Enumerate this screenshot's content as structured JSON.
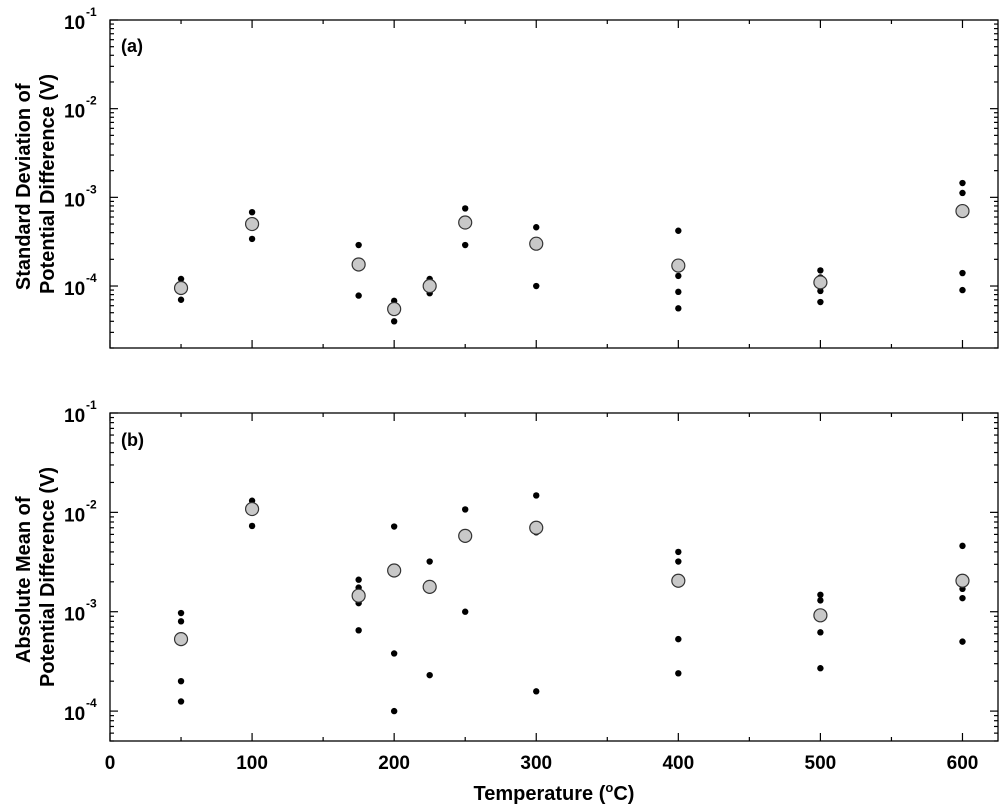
{
  "chart_data": [
    {
      "type": "scatter",
      "panel_label": "(a)",
      "ylabel_lines": [
        "Standard Deviation of",
        "Potential Difference (V)"
      ],
      "xlim": [
        0,
        625
      ],
      "ylim": [
        2e-05,
        0.1
      ],
      "yscale": "log",
      "x_ticks": [
        0,
        100,
        200,
        300,
        400,
        500,
        600
      ],
      "y_ticks": [
        {
          "value": 0.0001,
          "base": "10",
          "exp": "-4"
        },
        {
          "value": 0.001,
          "base": "10",
          "exp": "-3"
        },
        {
          "value": 0.01,
          "base": "10",
          "exp": "-2"
        },
        {
          "value": 0.1,
          "base": "10",
          "exp": "-1"
        }
      ],
      "grid": false,
      "series": [
        {
          "marker": "small-black-dot",
          "color": "#000000",
          "points": [
            [
              50,
              0.00012
            ],
            [
              50,
              7e-05
            ],
            [
              100,
              0.00068
            ],
            [
              100,
              0.00034
            ],
            [
              175,
              0.00029
            ],
            [
              175,
              0.00016
            ],
            [
              175,
              7.8e-05
            ],
            [
              200,
              6.8e-05
            ],
            [
              200,
              4e-05
            ],
            [
              225,
              0.00012
            ],
            [
              225,
              8.3e-05
            ],
            [
              250,
              0.00075
            ],
            [
              250,
              0.00029
            ],
            [
              300,
              0.00046
            ],
            [
              300,
              0.0001
            ],
            [
              400,
              0.00042
            ],
            [
              400,
              0.00013
            ],
            [
              400,
              8.6e-05
            ],
            [
              400,
              5.6e-05
            ],
            [
              500,
              0.00015
            ],
            [
              500,
              0.000125
            ],
            [
              500,
              8.8e-05
            ],
            [
              500,
              6.6e-05
            ],
            [
              600,
              0.00145
            ],
            [
              600,
              0.00112
            ],
            [
              600,
              0.00014
            ],
            [
              600,
              9e-05
            ]
          ]
        },
        {
          "marker": "large-gray-circle",
          "color": "#c8c8c8",
          "points": [
            [
              50,
              9.5e-05
            ],
            [
              100,
              0.0005
            ],
            [
              175,
              0.000175
            ],
            [
              200,
              5.5e-05
            ],
            [
              225,
              0.0001
            ],
            [
              250,
              0.00052
            ],
            [
              300,
              0.0003
            ],
            [
              400,
              0.00017
            ],
            [
              500,
              0.00011
            ],
            [
              600,
              0.0007
            ]
          ]
        }
      ]
    },
    {
      "type": "scatter",
      "panel_label": "(b)",
      "ylabel_lines": [
        "Absolute Mean of",
        "Potential Difference (V)"
      ],
      "xlabel_text": "Temperature (",
      "xlabel_sup": "o",
      "xlabel_tail": "C)",
      "xlim": [
        0,
        625
      ],
      "ylim": [
        5e-05,
        0.1
      ],
      "yscale": "log",
      "x_ticks": [
        0,
        100,
        200,
        300,
        400,
        500,
        600
      ],
      "y_ticks": [
        {
          "value": 0.0001,
          "base": "10",
          "exp": "-4"
        },
        {
          "value": 0.001,
          "base": "10",
          "exp": "-3"
        },
        {
          "value": 0.01,
          "base": "10",
          "exp": "-2"
        },
        {
          "value": 0.1,
          "base": "10",
          "exp": "-1"
        }
      ],
      "grid": false,
      "series": [
        {
          "marker": "small-black-dot",
          "color": "#000000",
          "points": [
            [
              50,
              0.00097
            ],
            [
              50,
              0.0008
            ],
            [
              50,
              0.0002
            ],
            [
              50,
              0.000125
            ],
            [
              100,
              0.0131
            ],
            [
              100,
              0.0073
            ],
            [
              175,
              0.0021
            ],
            [
              175,
              0.00175
            ],
            [
              175,
              0.00122
            ],
            [
              175,
              0.00065
            ],
            [
              200,
              0.0072
            ],
            [
              200,
              0.00038
            ],
            [
              200,
              0.0001
            ],
            [
              225,
              0.0032
            ],
            [
              225,
              0.00023
            ],
            [
              250,
              0.0107
            ],
            [
              250,
              0.001
            ],
            [
              300,
              0.0148
            ],
            [
              300,
              0.0063
            ],
            [
              300,
              0.000158
            ],
            [
              400,
              0.004
            ],
            [
              400,
              0.0032
            ],
            [
              400,
              0.00053
            ],
            [
              400,
              0.00024
            ],
            [
              500,
              0.00148
            ],
            [
              500,
              0.0013
            ],
            [
              500,
              0.00062
            ],
            [
              500,
              0.00027
            ],
            [
              600,
              0.0046
            ],
            [
              600,
              0.0017
            ],
            [
              600,
              0.00137
            ],
            [
              600,
              0.0005
            ]
          ]
        },
        {
          "marker": "large-gray-circle",
          "color": "#c8c8c8",
          "points": [
            [
              50,
              0.00053
            ],
            [
              100,
              0.0108
            ],
            [
              175,
              0.00145
            ],
            [
              200,
              0.0026
            ],
            [
              225,
              0.00178
            ],
            [
              250,
              0.0058
            ],
            [
              300,
              0.007
            ],
            [
              400,
              0.00205
            ],
            [
              500,
              0.00092
            ],
            [
              600,
              0.00205
            ]
          ]
        }
      ]
    }
  ]
}
